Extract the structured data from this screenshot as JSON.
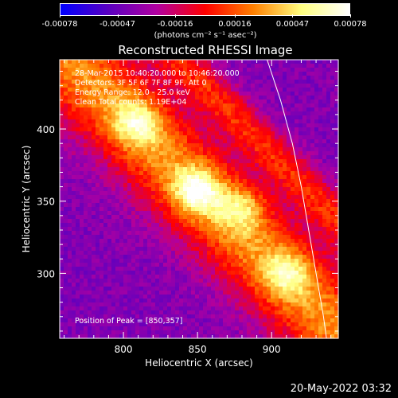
{
  "colorbar": {
    "tick_labels": [
      "-0.00078",
      "-0.00047",
      "-0.00016",
      "0.00016",
      "0.00047",
      "0.00078"
    ],
    "tick_values": [
      -0.00078,
      -0.00047,
      -0.00016,
      0.00016,
      0.00047,
      0.00078
    ],
    "range": [
      -0.00078,
      0.00078
    ],
    "unit_label": "(photons cm⁻² s⁻¹ asec⁻²)",
    "colormap": [
      "#0000ff",
      "#5a00c0",
      "#b000a0",
      "#ff0000",
      "#ff8000",
      "#ffff80",
      "#ffffff"
    ]
  },
  "chart_data": {
    "type": "heatmap",
    "title": "Reconstructed RHESSI Image",
    "xlabel": "Heliocentric X (arcsec)",
    "ylabel": "Heliocentric Y (arcsec)",
    "xlim": [
      757,
      945
    ],
    "ylim": [
      255,
      448
    ],
    "x_ticks": [
      800,
      850,
      900
    ],
    "y_ticks": [
      300,
      350,
      400
    ],
    "annotations": [
      "28-Mar-2015 10:40:20.000 to 10:46:20.000",
      "Detectors: 3F 5F 6F 7F 8F 9F, Att 0",
      "Energy Range: 12.0 - 25.0 keV",
      "Clean    Total counts: 1.19E+04"
    ],
    "peak_label": "Position of Peak = [850,357]",
    "peak_position": [
      850,
      357
    ],
    "limb_curve": {
      "color": "#ffffff",
      "points": [
        [
          897,
          448
        ],
        [
          906,
          420
        ],
        [
          914,
          390
        ],
        [
          920,
          360
        ],
        [
          925,
          330
        ],
        [
          930,
          300
        ],
        [
          935,
          270
        ],
        [
          937,
          255
        ]
      ]
    },
    "sources": [
      {
        "x": 850,
        "y": 357,
        "peak": 0.00078
      },
      {
        "x": 810,
        "y": 405,
        "peak": 0.00065
      },
      {
        "x": 880,
        "y": 345,
        "peak": 0.00058
      },
      {
        "x": 910,
        "y": 300,
        "peak": 0.0006
      }
    ],
    "background_level": -0.0004,
    "ridge": {
      "start": [
        770,
        440
      ],
      "end": [
        945,
        260
      ],
      "level": 0.0003
    }
  },
  "footer": {
    "date": "20-May-2022 03:32"
  }
}
